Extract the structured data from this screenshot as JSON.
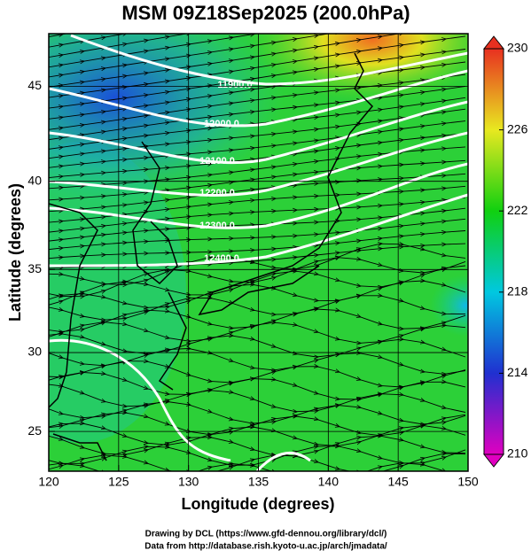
{
  "chart_data": {
    "type": "map",
    "title": "MSM 09Z18Sep2025 (200.0hPa)",
    "x_label": "Longitude (degrees)",
    "y_label": "Latitude  (degrees)",
    "xlim": [
      120,
      150
    ],
    "xticks": [
      120,
      125,
      130,
      135,
      140,
      145,
      150
    ],
    "ylim": [
      22.4,
      47.6
    ],
    "yticks": [
      25,
      30,
      35,
      40,
      45
    ],
    "projection": "mercator",
    "grid": true,
    "colorbar": {
      "clim": [
        210,
        230
      ],
      "ticks": [
        210,
        214,
        218,
        222,
        226,
        230
      ],
      "colors": [
        "#e000c0",
        "#2030d0",
        "#00c8e0",
        "#10d010",
        "#e8e820",
        "#e83020"
      ]
    },
    "contour_labels": [
      "11900.0",
      "12000.0",
      "12100.0",
      "12200.0",
      "12300.0",
      "12400.0"
    ],
    "credits": [
      "Drawing by DCL (https://www.gfd-dennou.org/library/dcl/)",
      "Data from http://database.rish.kyoto-u.ac.jp/arch/jmadata/"
    ]
  }
}
